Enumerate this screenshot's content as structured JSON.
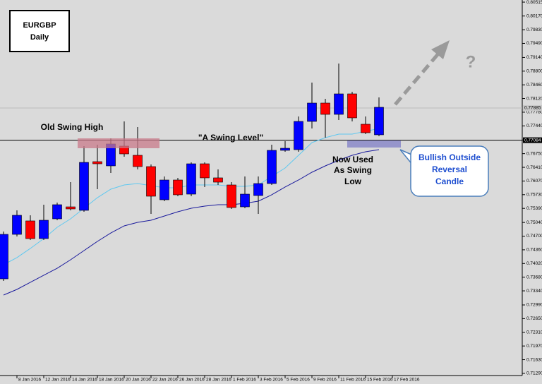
{
  "chart_data": {
    "type": "candlestick",
    "symbol": "EURGBP",
    "timeframe": "Daily",
    "categories": [
      null,
      "8 Jan 2016",
      null,
      "12 Jan 2016",
      null,
      "14 Jan 2016",
      null,
      "18 Jan 2016",
      null,
      "20 Jan 2016",
      null,
      "22 Jan 2016",
      null,
      "26 Jan 2016",
      null,
      "28 Jan 2016",
      null,
      "1 Feb 2016",
      null,
      "3 Feb 2016",
      null,
      "5 Feb 2016",
      null,
      "9 Feb 2016",
      null,
      "11 Feb 2016",
      null,
      "15 Feb 2016",
      null,
      "17 Feb 2016"
    ],
    "open": [
      0.73639,
      0.74744,
      0.75078,
      0.74639,
      0.7513,
      0.75428,
      0.75341,
      0.76551,
      0.76446,
      0.76937,
      0.76709,
      0.76428,
      0.75604,
      0.76095,
      0.75744,
      0.76498,
      0.76148,
      0.75972,
      0.75428,
      0.75709,
      0.76007,
      0.76832,
      0.76849,
      0.77551,
      0.78007,
      0.77726,
      0.78235,
      0.77481,
      0.77218,
      null
    ],
    "high": [
      0.74815,
      0.75341,
      0.75218,
      0.75481,
      0.75534,
      0.76042,
      0.76937,
      0.76972,
      0.7713,
      0.77551,
      0.7741,
      0.76481,
      0.76183,
      0.76148,
      0.76533,
      0.76533,
      0.76358,
      0.76042,
      0.76183,
      0.76183,
      0.76972,
      0.7706,
      0.77674,
      0.78515,
      0.78112,
      0.78989,
      0.78288,
      0.77674,
      0.78147,
      null
    ],
    "low": [
      0.73587,
      0.74692,
      0.74604,
      0.74604,
      0.75095,
      0.75341,
      0.75306,
      0.75867,
      0.7627,
      0.76674,
      0.76358,
      0.75253,
      0.75569,
      0.75692,
      0.75692,
      0.7592,
      0.75972,
      0.75376,
      0.75393,
      0.75253,
      0.75972,
      0.76797,
      0.76797,
      0.77375,
      0.77147,
      0.77586,
      0.77551,
      0.77235,
      0.77182,
      null
    ],
    "close": [
      0.74744,
      0.75218,
      0.74639,
      0.75095,
      0.75481,
      0.75376,
      0.76533,
      0.76498,
      0.7699,
      0.76744,
      0.76428,
      0.75692,
      0.76095,
      0.75727,
      0.76498,
      0.76148,
      0.76042,
      0.75411,
      0.75744,
      0.76007,
      0.76832,
      0.76884,
      0.77551,
      0.78007,
      0.77726,
      0.78235,
      0.77639,
      0.7727,
      0.77902,
      null
    ],
    "up_color": "#0000ff",
    "down_color": "#ff0000",
    "moving_averages": [
      {
        "color": "#5fc8f0",
        "values": [
          0.7399,
          0.74166,
          0.74394,
          0.74639,
          0.7492,
          0.7513,
          0.75393,
          0.75656,
          0.75867,
          0.75972,
          0.76007,
          0.75955,
          0.75902,
          0.75902,
          0.75972,
          0.75972,
          0.75972,
          0.75937,
          0.75937,
          0.75972,
          0.76183,
          0.76393,
          0.76709,
          0.77025,
          0.77147,
          0.77235,
          0.77235,
          0.77305,
          0.77375,
          null
        ]
      },
      {
        "color": "#1a1a9c",
        "values": [
          0.73236,
          0.73376,
          0.73552,
          0.73727,
          0.73902,
          0.74113,
          0.74341,
          0.74569,
          0.74779,
          0.74955,
          0.75043,
          0.75095,
          0.752,
          0.75306,
          0.75393,
          0.75446,
          0.75481,
          0.75481,
          0.75516,
          0.75569,
          0.75727,
          0.7592,
          0.76095,
          0.76288,
          0.76446,
          0.76586,
          0.76709,
          0.76797,
          0.76849,
          null
        ]
      }
    ],
    "ylim": [
      0.71236,
      0.80568
    ],
    "yticks": [
      0.80515,
      {
        "value": 0.8017,
        "label": "0.80170"
      },
      {
        "value": 0.7983,
        "label": "0.79830"
      },
      {
        "value": 0.7949,
        "label": "0.79490"
      },
      {
        "value": 0.7914,
        "label": "0.79140"
      },
      {
        "value": 0.788,
        "label": "0.78800"
      },
      {
        "value": 0.7846,
        "label": "0.78460"
      },
      {
        "value": 0.7812,
        "label": "0.78120"
      },
      {
        "value": 0.7778,
        "label": "0.77780"
      },
      {
        "value": 0.7744,
        "label": "0.77440"
      },
      {
        "value": 0.7709,
        "label": "0.77090"
      },
      {
        "value": 0.7675,
        "label": "0.76750"
      },
      {
        "value": 0.7641,
        "label": "0.76410"
      },
      {
        "value": 0.7607,
        "label": "0.76070"
      },
      {
        "value": 0.7573,
        "label": "0.75730"
      },
      {
        "value": 0.7539,
        "label": "0.75390"
      },
      {
        "value": 0.7504,
        "label": "0.75040"
      },
      {
        "value": 0.747,
        "label": "0.74700"
      },
      {
        "value": 0.7436,
        "label": "0.74360"
      },
      {
        "value": 0.7402,
        "label": "0.74020"
      },
      {
        "value": 0.7368,
        "label": "0.73680"
      },
      {
        "value": 0.7334,
        "label": "0.73340"
      },
      {
        "value": 0.7299,
        "label": "0.72990"
      },
      {
        "value": 0.7265,
        "label": "0.72650"
      },
      {
        "value": 0.7231,
        "label": "0.72310"
      },
      {
        "value": 0.7197,
        "label": "0.71970"
      },
      {
        "value": 0.7163,
        "label": "0.71630"
      },
      {
        "value": 0.7129,
        "label": "0.71290"
      }
    ],
    "price_labels": [
      {
        "value": 0.77885,
        "label": "0.77885"
      },
      {
        "value": 0.77084,
        "label": "0.77084"
      }
    ],
    "annotations": {
      "old_swing_high": "Old Swing High",
      "swing_level": "\"A Swing Level\"",
      "swing_low": [
        "Now Used",
        "As Swing",
        "Low"
      ],
      "callout": [
        "Bullish Outside",
        "Reversal",
        "Candle"
      ],
      "question": "?"
    }
  }
}
